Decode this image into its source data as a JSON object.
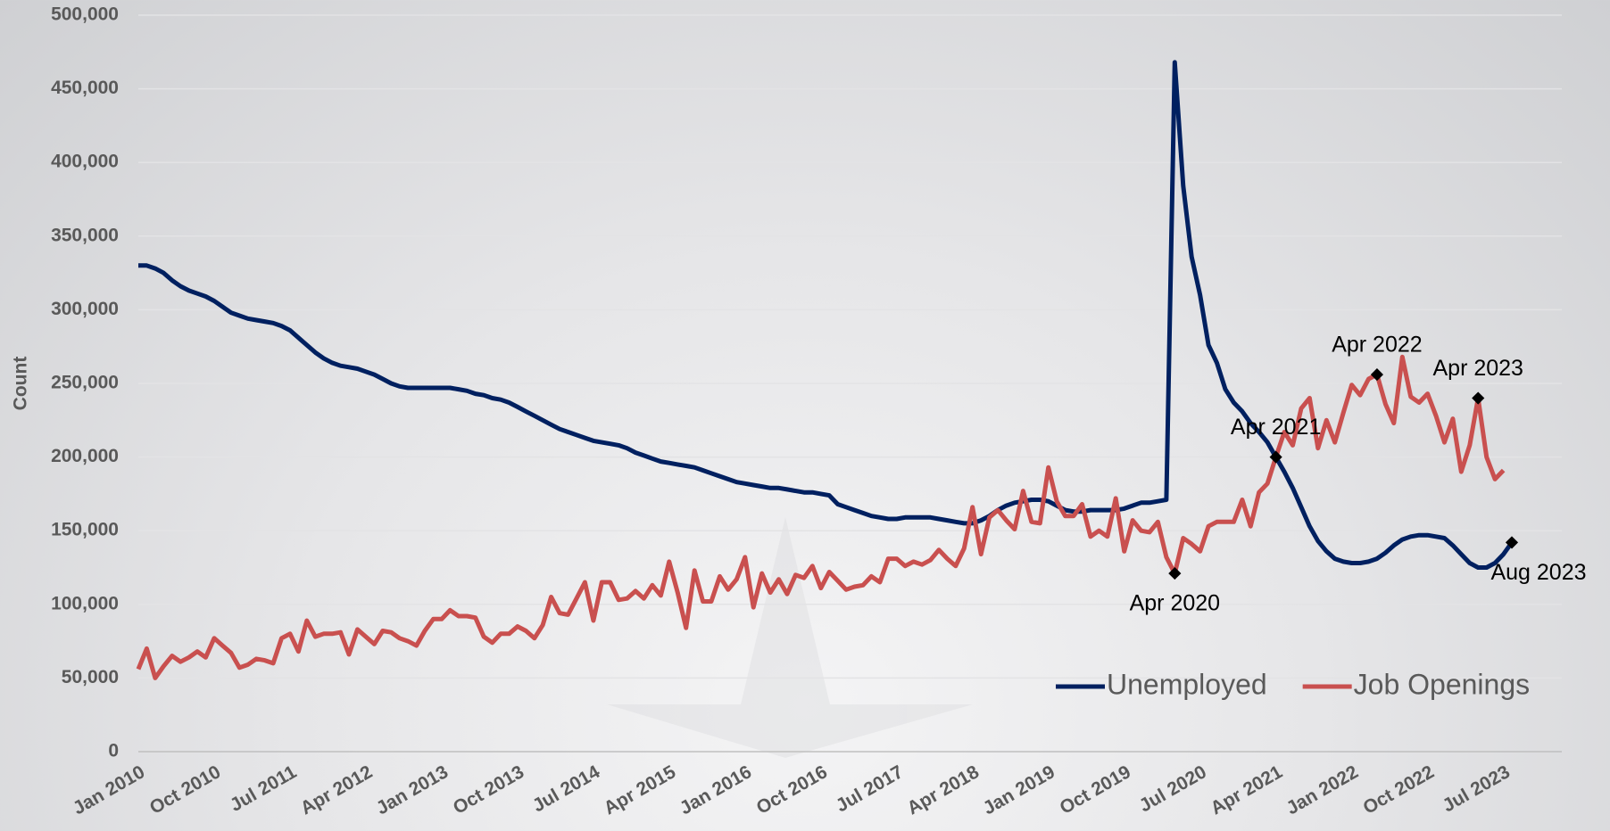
{
  "chart_data": {
    "type": "line",
    "y_label": "Count",
    "categories": [
      "Jan 2010",
      null,
      null,
      null,
      null,
      null,
      null,
      null,
      null,
      "Oct 2010",
      null,
      null,
      null,
      null,
      null,
      null,
      null,
      null,
      "Jul 2011",
      null,
      null,
      null,
      null,
      null,
      null,
      null,
      null,
      "Apr 2012",
      null,
      null,
      null,
      null,
      null,
      null,
      null,
      null,
      "Jan 2013",
      null,
      null,
      null,
      null,
      null,
      null,
      null,
      null,
      "Oct 2013",
      null,
      null,
      null,
      null,
      null,
      null,
      null,
      null,
      "Jul 2014",
      null,
      null,
      null,
      null,
      null,
      null,
      null,
      null,
      "Apr 2015",
      null,
      null,
      null,
      null,
      null,
      null,
      null,
      null,
      "Jan 2016",
      null,
      null,
      null,
      null,
      null,
      null,
      null,
      null,
      "Oct 2016",
      null,
      null,
      null,
      null,
      null,
      null,
      null,
      null,
      "Jul 2017",
      null,
      null,
      null,
      null,
      null,
      null,
      null,
      null,
      "Apr 2018",
      null,
      null,
      null,
      null,
      null,
      null,
      null,
      null,
      "Jan 2019",
      null,
      null,
      null,
      null,
      null,
      null,
      null,
      null,
      "Oct 2019",
      null,
      null,
      null,
      null,
      null,
      null,
      null,
      null,
      "Jul 2020",
      null,
      null,
      null,
      null,
      null,
      null,
      null,
      null,
      "Apr 2021",
      null,
      null,
      null,
      null,
      null,
      null,
      null,
      null,
      "Jan 2022",
      null,
      null,
      null,
      null,
      null,
      null,
      null,
      null,
      "Oct 2022",
      null,
      null,
      null,
      null,
      null,
      null,
      null,
      null,
      "Jul 2023",
      null
    ],
    "series": [
      {
        "name": "Unemployed",
        "color": "#002060",
        "values": [
          330000,
          330000,
          328000,
          325000,
          320000,
          316000,
          313000,
          311000,
          309000,
          306000,
          302000,
          298000,
          296000,
          294000,
          293000,
          292000,
          291000,
          289000,
          286000,
          281000,
          276000,
          271000,
          267000,
          264000,
          262000,
          261000,
          260000,
          258000,
          256000,
          253000,
          250000,
          248000,
          247000,
          247000,
          247000,
          247000,
          247000,
          247000,
          246000,
          245000,
          243000,
          242000,
          240000,
          239000,
          237000,
          234000,
          231000,
          228000,
          225000,
          222000,
          219000,
          217000,
          215000,
          213000,
          211000,
          210000,
          209000,
          208000,
          206000,
          203000,
          201000,
          199000,
          197000,
          196000,
          195000,
          194000,
          193000,
          191000,
          189000,
          187000,
          185000,
          183000,
          182000,
          181000,
          180000,
          179000,
          179000,
          178000,
          177000,
          176000,
          176000,
          175000,
          174000,
          168000,
          166000,
          164000,
          162000,
          160000,
          159000,
          158000,
          158000,
          159000,
          159000,
          159000,
          159000,
          158000,
          157000,
          156000,
          155000,
          155000,
          157000,
          160000,
          164000,
          167000,
          169000,
          170000,
          171000,
          171000,
          170000,
          167000,
          164000,
          163000,
          163000,
          164000,
          164000,
          164000,
          164000,
          165000,
          167000,
          169000,
          169000,
          170000,
          171000,
          468000,
          384000,
          336000,
          310000,
          276000,
          264000,
          246000,
          237000,
          231000,
          223000,
          217000,
          210000,
          200000,
          190000,
          179000,
          166000,
          153000,
          143000,
          136000,
          131000,
          129000,
          128000,
          128000,
          129000,
          131000,
          135000,
          140000,
          144000,
          146000,
          147000,
          147000,
          146000,
          145000,
          140000,
          134000,
          128000,
          125000,
          125000,
          128000,
          134000,
          142000
        ],
        "point_labels": [
          null,
          null,
          null,
          null,
          null,
          null,
          null,
          null,
          null,
          null,
          null,
          null,
          null,
          null,
          null,
          null,
          null,
          null,
          null,
          null,
          null,
          null,
          null,
          null,
          null,
          null,
          null,
          null,
          null,
          null,
          null,
          null,
          null,
          null,
          null,
          null,
          null,
          null,
          null,
          null,
          null,
          null,
          null,
          null,
          null,
          null,
          null,
          null,
          null,
          null,
          null,
          null,
          null,
          null,
          null,
          null,
          null,
          null,
          null,
          null,
          null,
          null,
          null,
          null,
          null,
          null,
          null,
          null,
          null,
          null,
          null,
          null,
          null,
          null,
          null,
          null,
          null,
          null,
          null,
          null,
          null,
          null,
          null,
          null,
          null,
          null,
          null,
          null,
          null,
          null,
          null,
          null,
          null,
          null,
          null,
          null,
          null,
          null,
          null,
          null,
          null,
          null,
          null,
          null,
          null,
          null,
          null,
          null,
          null,
          null,
          null,
          null,
          null,
          null,
          null,
          null,
          null,
          null,
          null,
          null,
          null,
          null,
          null,
          null,
          null,
          null,
          null,
          null,
          null,
          null,
          null,
          null,
          null,
          null,
          null,
          null,
          null,
          null,
          null,
          null,
          null,
          null,
          null,
          null,
          null,
          null,
          null,
          null,
          null,
          null,
          null,
          null,
          null,
          null,
          null,
          null,
          null,
          null,
          null,
          null,
          null,
          null,
          null,
          "Aug 2023"
        ]
      },
      {
        "name": "Job Openings",
        "color": "#c9504f",
        "values": [
          56000,
          70000,
          50000,
          58000,
          65000,
          61000,
          64000,
          68000,
          64000,
          77000,
          72000,
          67000,
          57000,
          59000,
          63000,
          62000,
          60000,
          77000,
          80000,
          68000,
          89000,
          78000,
          80000,
          80000,
          81000,
          66000,
          83000,
          78000,
          73000,
          82000,
          81000,
          77000,
          75000,
          72000,
          82000,
          90000,
          90000,
          96000,
          92000,
          92000,
          91000,
          78000,
          74000,
          80000,
          80000,
          85000,
          82000,
          77000,
          86000,
          105000,
          94000,
          93000,
          104000,
          115000,
          89000,
          115000,
          115000,
          103000,
          104000,
          109000,
          104000,
          113000,
          106000,
          129000,
          108000,
          84000,
          123000,
          102000,
          102000,
          119000,
          110000,
          117000,
          132000,
          98000,
          121000,
          108000,
          117000,
          107000,
          120000,
          118000,
          126000,
          111000,
          122000,
          116000,
          110000,
          112000,
          113000,
          119000,
          115000,
          131000,
          131000,
          126000,
          129000,
          127000,
          130000,
          137000,
          131000,
          126000,
          138000,
          166000,
          134000,
          159000,
          164000,
          157000,
          151000,
          177000,
          156000,
          155000,
          193000,
          170000,
          160000,
          160000,
          168000,
          146000,
          150000,
          146000,
          172000,
          136000,
          157000,
          150000,
          149000,
          156000,
          132000,
          121000,
          145000,
          141000,
          136000,
          153000,
          156000,
          156000,
          156000,
          171000,
          153000,
          176000,
          182000,
          200000,
          217000,
          208000,
          233000,
          240000,
          206000,
          225000,
          210000,
          230000,
          249000,
          242000,
          253000,
          256000,
          236000,
          223000,
          268000,
          241000,
          237000,
          243000,
          228000,
          210000,
          226000,
          190000,
          208000,
          240000,
          200000,
          185000,
          191000,
          null
        ],
        "point_labels": [
          null,
          null,
          null,
          null,
          null,
          null,
          null,
          null,
          null,
          null,
          null,
          null,
          null,
          null,
          null,
          null,
          null,
          null,
          null,
          null,
          null,
          null,
          null,
          null,
          null,
          null,
          null,
          null,
          null,
          null,
          null,
          null,
          null,
          null,
          null,
          null,
          null,
          null,
          null,
          null,
          null,
          null,
          null,
          null,
          null,
          null,
          null,
          null,
          null,
          null,
          null,
          null,
          null,
          null,
          null,
          null,
          null,
          null,
          null,
          null,
          null,
          null,
          null,
          null,
          null,
          null,
          null,
          null,
          null,
          null,
          null,
          null,
          null,
          null,
          null,
          null,
          null,
          null,
          null,
          null,
          null,
          null,
          null,
          null,
          null,
          null,
          null,
          null,
          null,
          null,
          null,
          null,
          null,
          null,
          null,
          null,
          null,
          null,
          null,
          null,
          null,
          null,
          null,
          null,
          null,
          null,
          null,
          null,
          null,
          null,
          null,
          null,
          null,
          null,
          null,
          null,
          null,
          null,
          null,
          null,
          null,
          null,
          null,
          "Apr 2020",
          null,
          null,
          null,
          null,
          null,
          null,
          null,
          null,
          null,
          null,
          null,
          "Apr 2021",
          null,
          null,
          null,
          null,
          null,
          null,
          null,
          null,
          null,
          null,
          null,
          "Apr 2022",
          null,
          null,
          null,
          null,
          null,
          null,
          null,
          null,
          null,
          null,
          null,
          "Apr 2023",
          null,
          null,
          null,
          null
        ]
      }
    ],
    "ylim": [
      0,
      500000
    ],
    "yticks": [
      0,
      {
        "value": 50000,
        "label": "50,000"
      },
      {
        "value": 100000,
        "label": "100,000"
      },
      {
        "value": 150000,
        "label": "150,000"
      },
      {
        "value": 200000,
        "label": "200,000"
      },
      {
        "value": 250000,
        "label": "250,000"
      },
      {
        "value": 300000,
        "label": "300,000"
      },
      {
        "value": 350000,
        "label": "350,000"
      },
      {
        "value": 400000,
        "label": "400,000"
      },
      {
        "value": 450000,
        "label": "450,000"
      },
      {
        "value": 500000,
        "label": "500,000"
      }
    ],
    "grid": true,
    "legend": "lower right"
  }
}
